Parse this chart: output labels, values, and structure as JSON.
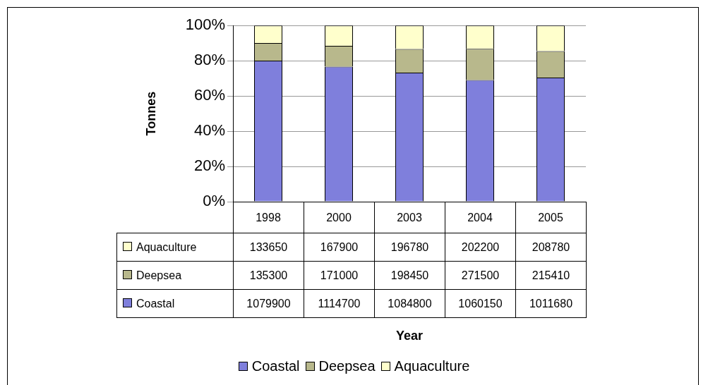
{
  "chart_data": {
    "type": "bar",
    "stacked": true,
    "ylabel": "Tonnes",
    "categories": [
      "1998",
      "2000",
      "2003",
      "2004",
      "2005"
    ],
    "series": [
      {
        "name": "Coastal",
        "color": "#7f7fdc",
        "values": [
          80.1,
          76.7,
          73.3,
          69.1,
          70.5
        ]
      },
      {
        "name": "Deepsea",
        "color": "#b8b88c",
        "values": [
          10.0,
          11.8,
          13.4,
          17.7,
          15.0
        ]
      },
      {
        "name": "Aquaculture",
        "color": "#ffffcc",
        "values": [
          9.9,
          11.5,
          13.3,
          13.2,
          14.5
        ]
      }
    ],
    "annotations": [
      "133650",
      "167900",
      "196780",
      "202200",
      "208780",
      "135300",
      "171000",
      "198450",
      "271500",
      "215410",
      "1079900",
      "1114700",
      "1084800",
      "1060150",
      "1011680",
      "Year"
    ],
    "ylim": [
      0,
      100
    ],
    "yticks": [
      {
        "value": 0,
        "label": "0%"
      },
      {
        "value": 20,
        "label": "20%"
      },
      {
        "value": 40,
        "label": "40%"
      },
      {
        "value": 60,
        "label": "60%"
      },
      {
        "value": 80,
        "label": "80%"
      },
      {
        "value": 100,
        "label": "100%"
      }
    ],
    "grid": "y",
    "legend": "bottom"
  }
}
